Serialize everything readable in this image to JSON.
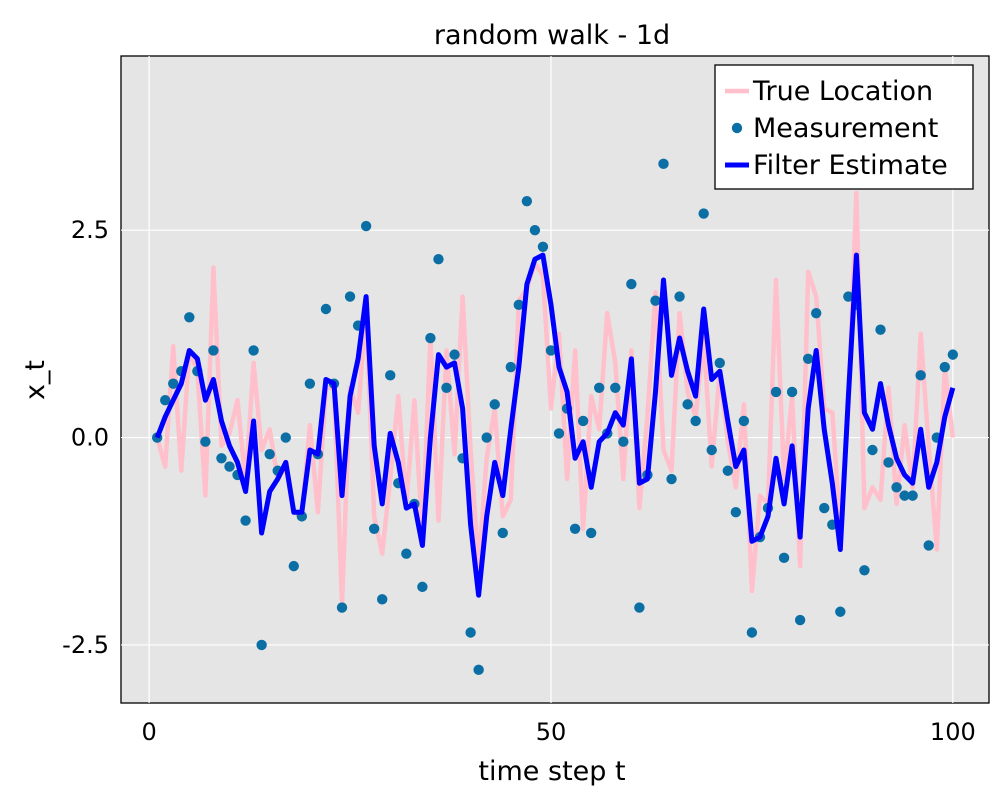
{
  "chart_data": {
    "type": "line",
    "title": "random walk - 1d",
    "xlabel": "time step t",
    "ylabel": "x_t",
    "xlim": [
      -3.5,
      104.5
    ],
    "ylim": [
      -3.2,
      4.6
    ],
    "xticks": [
      {
        "value": 0,
        "label": "0"
      },
      {
        "value": 50,
        "label": "50"
      },
      {
        "value": 100,
        "label": "100"
      }
    ],
    "yticks": [
      {
        "value": -2.5,
        "label": "-2.5"
      },
      {
        "value": 0,
        "label": "0.0"
      },
      {
        "value": 2.5,
        "label": "2.5"
      }
    ],
    "grid": true,
    "legend_position": "top-right",
    "colors": {
      "background": "#e5e5e5",
      "grid": "#ffffff",
      "true_location": "#ffc0cb",
      "measurement": "#0b6fa5",
      "filter_estimate": "#0000ff"
    },
    "legend": [
      {
        "label": "True Location",
        "kind": "line",
        "series": "true_location"
      },
      {
        "label": "Measurement",
        "kind": "marker",
        "series": "measurement"
      },
      {
        "label": "Filter Estimate",
        "kind": "line",
        "series": "filter_estimate"
      }
    ],
    "series": [
      {
        "name": "True Location",
        "key": "true_location",
        "x": [
          1,
          2,
          3,
          4,
          5,
          6,
          7,
          8,
          9,
          10,
          11,
          12,
          13,
          14,
          15,
          16,
          17,
          18,
          19,
          20,
          21,
          22,
          23,
          24,
          25,
          26,
          27,
          28,
          29,
          30,
          31,
          32,
          33,
          34,
          35,
          36,
          37,
          38,
          39,
          40,
          41,
          42,
          43,
          44,
          45,
          46,
          47,
          48,
          49,
          50,
          51,
          52,
          53,
          54,
          55,
          56,
          57,
          58,
          59,
          60,
          61,
          62,
          63,
          64,
          65,
          66,
          67,
          68,
          69,
          70,
          71,
          72,
          73,
          74,
          75,
          76,
          77,
          78,
          79,
          80,
          81,
          82,
          83,
          84,
          85,
          86,
          87,
          88,
          89,
          90,
          91,
          92,
          93,
          94,
          95,
          96,
          97,
          98,
          99,
          100
        ],
        "y": [
          0,
          -0.35,
          1.1,
          -0.4,
          1.05,
          0.8,
          -0.7,
          2.05,
          -0.1,
          0.05,
          0.45,
          -0.55,
          0.9,
          -0.15,
          0.1,
          -0.5,
          -0.35,
          -0.9,
          -0.95,
          0.15,
          -0.9,
          0.6,
          0.6,
          -2,
          0.6,
          0.3,
          1.55,
          -0.95,
          -1.4,
          -0.5,
          0.5,
          -0.8,
          0.45,
          -1.2,
          1.2,
          -1,
          1.05,
          -0.2,
          1.7,
          -0.15,
          -1.55,
          -0.25,
          0.35,
          -0.95,
          -0.75,
          1.65,
          1.8,
          2.1,
          1.95,
          0.35,
          1.25,
          -0.5,
          1.05,
          -1.1,
          0.5,
          0.1,
          1.5,
          0.9,
          -0.5,
          1.05,
          -0.85,
          0.25,
          1.75,
          -0.15,
          -0.4,
          1.5,
          0.55,
          0.25,
          1.2,
          -0.35,
          0.8,
          -0.05,
          -0.6,
          0.4,
          -1.85,
          -0.7,
          -0.8,
          1.9,
          -0.5,
          0.5,
          -1.55,
          2,
          1.7,
          0.35,
          0.3,
          -1.1,
          0.35,
          2.95,
          -0.85,
          -0.6,
          -0.75,
          0.6,
          -0.8,
          0.15,
          -0.6,
          1.25,
          -0.1,
          -1.35,
          0.85,
          0
        ],
        "style": "line"
      },
      {
        "name": "Measurement",
        "key": "measurement",
        "x": [
          1,
          2,
          3,
          4,
          5,
          6,
          7,
          8,
          9,
          10,
          11,
          12,
          13,
          14,
          15,
          16,
          17,
          18,
          19,
          20,
          21,
          22,
          23,
          24,
          25,
          26,
          27,
          28,
          29,
          30,
          31,
          32,
          33,
          34,
          35,
          36,
          37,
          38,
          39,
          40,
          41,
          42,
          43,
          44,
          45,
          46,
          47,
          48,
          49,
          50,
          51,
          52,
          53,
          54,
          55,
          56,
          57,
          58,
          59,
          60,
          61,
          62,
          63,
          64,
          65,
          66,
          67,
          68,
          69,
          70,
          71,
          72,
          73,
          74,
          75,
          76,
          77,
          78,
          79,
          80,
          81,
          82,
          83,
          84,
          85,
          86,
          87,
          88,
          89,
          90,
          91,
          92,
          93,
          94,
          95,
          96,
          97,
          98,
          99,
          100
        ],
        "y": [
          0,
          0.45,
          0.65,
          0.8,
          1.45,
          0.8,
          -0.05,
          1.05,
          -0.25,
          -0.35,
          -0.45,
          -1,
          1.05,
          -2.5,
          -0.2,
          -0.4,
          0,
          -1.55,
          -0.95,
          0.65,
          -0.2,
          1.55,
          0.65,
          -2.05,
          1.7,
          1.35,
          2.55,
          -1.1,
          -1.95,
          0.75,
          -0.55,
          -1.4,
          -0.8,
          -1.8,
          1.2,
          2.15,
          0.6,
          1,
          -0.25,
          -2.35,
          -2.8,
          0,
          0.4,
          -1.15,
          0.85,
          1.6,
          2.85,
          2.5,
          2.3,
          1.05,
          0.05,
          0.35,
          -1.1,
          0.2,
          -1.15,
          0.6,
          0.05,
          0.6,
          -0.05,
          1.85,
          -2.05,
          -0.45,
          1.65,
          3.3,
          -0.5,
          1.7,
          0.4,
          0.2,
          2.7,
          -0.15,
          0.9,
          -0.4,
          -0.9,
          0.2,
          -2.35,
          -1.2,
          -0.85,
          0.55,
          -1.45,
          0.55,
          -2.2,
          0.95,
          1.5,
          -0.85,
          -1.05,
          -2.1,
          1.7,
          1.6,
          -1.6,
          -0.15,
          1.3,
          -0.3,
          -0.6,
          -0.7,
          -0.7,
          0.75,
          -1.3,
          0,
          0.85,
          1
        ]
      },
      {
        "name": "Filter Estimate",
        "key": "filter_estimate",
        "x": [
          1,
          2,
          3,
          4,
          5,
          6,
          7,
          8,
          9,
          10,
          11,
          12,
          13,
          14,
          15,
          16,
          17,
          18,
          19,
          20,
          21,
          22,
          23,
          24,
          25,
          26,
          27,
          28,
          29,
          30,
          31,
          32,
          33,
          34,
          35,
          36,
          37,
          38,
          39,
          40,
          41,
          42,
          43,
          44,
          45,
          46,
          47,
          48,
          49,
          50,
          51,
          52,
          53,
          54,
          55,
          56,
          57,
          58,
          59,
          60,
          61,
          62,
          63,
          64,
          65,
          66,
          67,
          68,
          69,
          70,
          71,
          72,
          73,
          74,
          75,
          76,
          77,
          78,
          79,
          80,
          81,
          82,
          83,
          84,
          85,
          86,
          87,
          88,
          89,
          90,
          91,
          92,
          93,
          94,
          95,
          96,
          97,
          98,
          99,
          100
        ],
        "y": [
          0,
          0.25,
          0.45,
          0.65,
          1.05,
          0.95,
          0.45,
          0.7,
          0.2,
          -0.1,
          -0.3,
          -0.65,
          0.2,
          -1.15,
          -0.65,
          -0.5,
          -0.3,
          -0.9,
          -0.9,
          -0.15,
          -0.2,
          0.7,
          0.65,
          -0.7,
          0.5,
          0.95,
          1.7,
          -0.1,
          -0.8,
          0.05,
          -0.3,
          -0.85,
          -0.8,
          -1.3,
          0,
          1,
          0.85,
          0.9,
          0.35,
          -1.05,
          -1.9,
          -0.95,
          -0.3,
          -0.7,
          0.1,
          0.85,
          1.85,
          2.15,
          2.2,
          1.6,
          0.85,
          0.55,
          -0.25,
          -0.05,
          -0.6,
          -0.05,
          0.05,
          0.3,
          0.15,
          0.95,
          -0.55,
          -0.5,
          0.55,
          1.9,
          0.75,
          1.2,
          0.8,
          0.5,
          1.55,
          0.7,
          0.8,
          0.2,
          -0.35,
          -0.15,
          -1.25,
          -1.2,
          -0.95,
          -0.25,
          -0.8,
          -0.1,
          -1.2,
          0.35,
          1.05,
          0.1,
          -0.55,
          -1.35,
          0.5,
          2.2,
          0.3,
          0.1,
          0.65,
          0.15,
          -0.25,
          -0.45,
          -0.55,
          0.1,
          -0.6,
          -0.3,
          0.25,
          0.6
        ],
        "style": "line"
      }
    ]
  }
}
